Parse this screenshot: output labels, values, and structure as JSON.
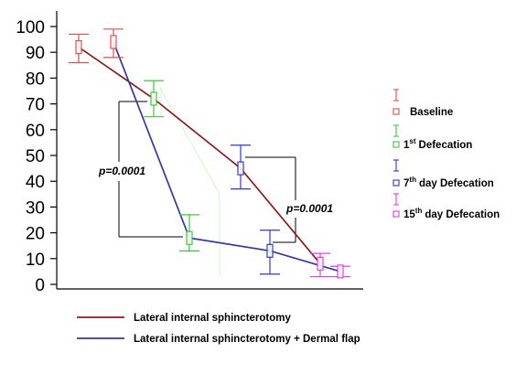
{
  "chart_data": {
    "type": "line",
    "ylim": [
      0,
      100
    ],
    "yticks": [
      0,
      10,
      20,
      30,
      40,
      50,
      60,
      70,
      80,
      90,
      100
    ],
    "grid": false,
    "legend_placement": {
      "timepoints": "right",
      "series": "bottom"
    },
    "categories": [
      {
        "text": "Baseline",
        "color": "#e04f4f"
      },
      {
        "ordinal": "1",
        "sup": "st",
        "text": "Defecation",
        "color": "#3cc83c"
      },
      {
        "ordinal": "7",
        "sup": "th",
        "text": "day Defecation",
        "color": "#3737cc"
      },
      {
        "ordinal": "15",
        "sup": "th",
        "text": "day Defecation",
        "color": "#e040e0"
      }
    ],
    "series": [
      {
        "name": "Lateral internal sphincterotomy",
        "color": "#8e1b1b",
        "points": [
          {
            "y": 92,
            "low": 86,
            "high": 97
          },
          {
            "y": 72,
            "low": 65,
            "high": 79
          },
          {
            "y": 45,
            "low": 37,
            "high": 54
          },
          {
            "y": 8,
            "low": 3,
            "high": 12
          }
        ]
      },
      {
        "name": "Lateral internal sphincterotomy + Dermal flap",
        "color": "#3636a8",
        "points": [
          {
            "y": 94,
            "low": 88,
            "high": 99
          },
          {
            "y": 18,
            "low": 13,
            "high": 27
          },
          {
            "y": 13,
            "low": 4,
            "high": 21
          },
          {
            "y": 5,
            "low": 3,
            "high": 7
          }
        ]
      }
    ],
    "annotations": [
      {
        "text": "p=0.0001"
      },
      {
        "text": "p=0.0001"
      }
    ]
  }
}
